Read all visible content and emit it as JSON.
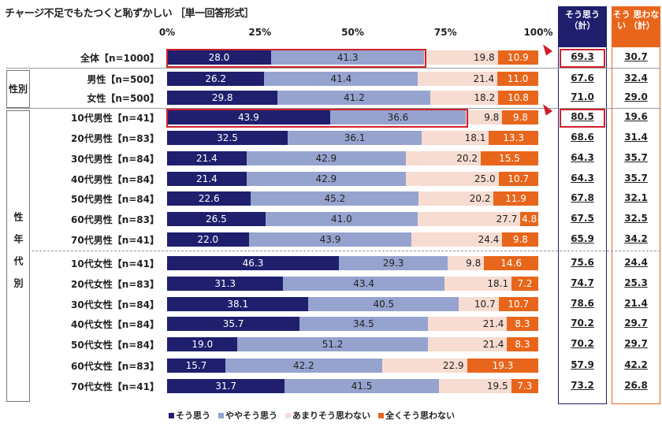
{
  "title": "チャージ不足でもたつくと恥ずかしい ［単一回答形式］",
  "colors": {
    "strong_agree": "#1f1f6e",
    "agree": "#96a3cf",
    "disagree": "#f7dcd2",
    "strong_disagree": "#e8661c",
    "highlight": "#d0202a"
  },
  "headers": {
    "agree_total": "そう思う（計）",
    "disagree_total": "そう 思わない （計）"
  },
  "groups": {
    "gender": "性別",
    "age_gender": "性年代別"
  },
  "chart_data": {
    "type": "bar",
    "stacked": true,
    "orientation": "horizontal",
    "xlim": [
      0,
      100
    ],
    "ticks": [
      "0%",
      "25%",
      "50%",
      "75%",
      "100%"
    ],
    "series_names": [
      "そう思う",
      "ややそう思う",
      "あまりそう思わない",
      "全くそう思わない"
    ],
    "legend": "bottom",
    "rows": [
      {
        "label": "全体【n=1000】",
        "values": [
          28.0,
          41.3,
          19.8,
          10.9
        ],
        "agree": "69.3",
        "disagree": "30.7",
        "highlight": true
      },
      {
        "label": "男性【n=500】",
        "values": [
          26.2,
          41.4,
          21.4,
          11.0
        ],
        "agree": "67.6",
        "disagree": "32.4"
      },
      {
        "label": "女性【n=500】",
        "values": [
          29.8,
          41.2,
          18.2,
          10.8
        ],
        "agree": "71.0",
        "disagree": "29.0"
      },
      {
        "label": "10代男性【n=41】",
        "values": [
          43.9,
          36.6,
          9.8,
          9.8
        ],
        "agree": "80.5",
        "disagree": "19.6",
        "highlight": true
      },
      {
        "label": "20代男性【n=83】",
        "values": [
          32.5,
          36.1,
          18.1,
          13.3
        ],
        "agree": "68.6",
        "disagree": "31.4"
      },
      {
        "label": "30代男性【n=84】",
        "values": [
          21.4,
          42.9,
          20.2,
          15.5
        ],
        "agree": "64.3",
        "disagree": "35.7"
      },
      {
        "label": "40代男性【n=84】",
        "values": [
          21.4,
          42.9,
          25.0,
          10.7
        ],
        "agree": "64.3",
        "disagree": "35.7"
      },
      {
        "label": "50代男性【n=84】",
        "values": [
          22.6,
          45.2,
          20.2,
          11.9
        ],
        "agree": "67.8",
        "disagree": "32.1"
      },
      {
        "label": "60代男性【n=83】",
        "values": [
          26.5,
          41.0,
          27.7,
          4.8
        ],
        "agree": "67.5",
        "disagree": "32.5"
      },
      {
        "label": "70代男性【n=41】",
        "values": [
          22.0,
          43.9,
          24.4,
          9.8
        ],
        "agree": "65.9",
        "disagree": "34.2"
      },
      {
        "label": "10代女性【n=41】",
        "values": [
          46.3,
          29.3,
          9.8,
          14.6
        ],
        "agree": "75.6",
        "disagree": "24.4"
      },
      {
        "label": "20代女性【n=83】",
        "values": [
          31.3,
          43.4,
          18.1,
          7.2
        ],
        "agree": "74.7",
        "disagree": "25.3"
      },
      {
        "label": "30代女性【n=84】",
        "values": [
          38.1,
          40.5,
          10.7,
          10.7
        ],
        "agree": "78.6",
        "disagree": "21.4"
      },
      {
        "label": "40代女性【n=84】",
        "values": [
          35.7,
          34.5,
          21.4,
          8.3
        ],
        "agree": "70.2",
        "disagree": "29.7"
      },
      {
        "label": "50代女性【n=84】",
        "values": [
          19.0,
          51.2,
          21.4,
          8.3
        ],
        "agree": "70.2",
        "disagree": "29.7"
      },
      {
        "label": "60代女性【n=83】",
        "values": [
          15.7,
          42.2,
          22.9,
          19.3
        ],
        "agree": "57.9",
        "disagree": "42.2"
      },
      {
        "label": "70代女性【n=41】",
        "values": [
          31.7,
          41.5,
          19.5,
          7.3
        ],
        "agree": "73.2",
        "disagree": "26.8"
      }
    ]
  }
}
